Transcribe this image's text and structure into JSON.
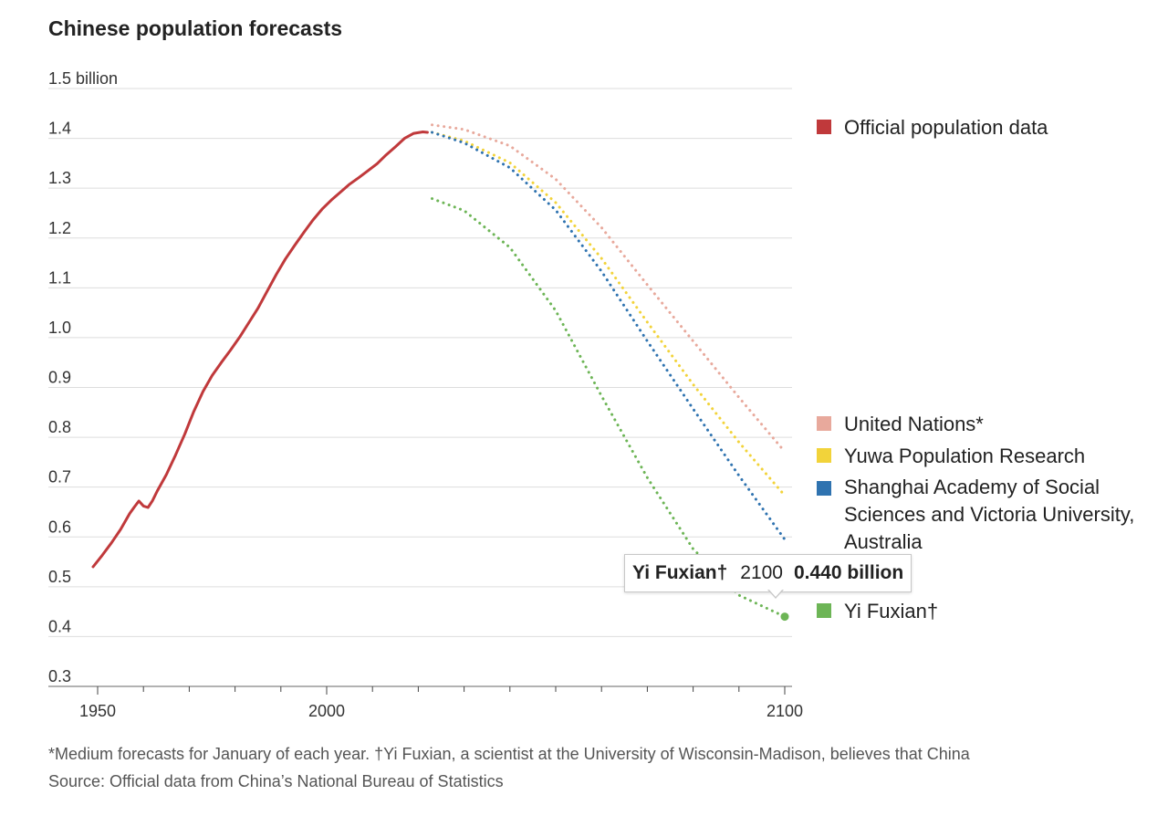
{
  "chart_data": {
    "type": "line",
    "title": "Chinese population forecasts",
    "y_unit_label": "1.5 billion",
    "ylim": [
      0.3,
      1.5
    ],
    "xlim": [
      1950,
      2100
    ],
    "y_ticks": [
      "0.3",
      "0.4",
      "0.5",
      "0.6",
      "0.7",
      "0.8",
      "0.9",
      "1.0",
      "1.1",
      "1.2",
      "1.3",
      "1.4"
    ],
    "x_ticks": [
      "1950",
      "2000",
      "2100"
    ],
    "grid": true,
    "legend_placement": "right",
    "series": [
      {
        "name": "Official population data",
        "color": "#c0393b",
        "style": "solid",
        "x": [
          1949,
          1951,
          1953,
          1955,
          1957,
          1958,
          1959,
          1960,
          1961,
          1962,
          1963,
          1965,
          1967,
          1969,
          1971,
          1973,
          1975,
          1977,
          1979,
          1981,
          1983,
          1985,
          1987,
          1989,
          1991,
          1993,
          1995,
          1997,
          1999,
          2001,
          2003,
          2005,
          2007,
          2009,
          2011,
          2013,
          2015,
          2017,
          2019,
          2021,
          2022
        ],
        "y": [
          0.54,
          0.563,
          0.588,
          0.615,
          0.647,
          0.66,
          0.672,
          0.662,
          0.659,
          0.673,
          0.692,
          0.725,
          0.764,
          0.806,
          0.852,
          0.892,
          0.924,
          0.95,
          0.975,
          1.001,
          1.03,
          1.059,
          1.093,
          1.127,
          1.158,
          1.185,
          1.211,
          1.236,
          1.258,
          1.276,
          1.292,
          1.308,
          1.321,
          1.335,
          1.349,
          1.367,
          1.383,
          1.4,
          1.41,
          1.413,
          1.412
        ]
      },
      {
        "name": "United Nations*",
        "color": "#e8a99c",
        "style": "dotted",
        "x": [
          2023,
          2030,
          2040,
          2050,
          2060,
          2070,
          2080,
          2090,
          2100
        ],
        "y": [
          1.427,
          1.418,
          1.385,
          1.318,
          1.221,
          1.106,
          0.993,
          0.88,
          0.771
        ]
      },
      {
        "name": "Yuwa Population Research",
        "color": "#f2d33a",
        "style": "dotted",
        "x": [
          2023,
          2030,
          2040,
          2050,
          2060,
          2070,
          2080,
          2090,
          2100
        ],
        "y": [
          1.412,
          1.395,
          1.351,
          1.271,
          1.159,
          1.031,
          0.906,
          0.79,
          0.683
        ]
      },
      {
        "name": "Shanghai Academy of Social Sciences and Victoria University, Australia",
        "color": "#2f73b0",
        "style": "dotted",
        "x": [
          2023,
          2030,
          2040,
          2050,
          2060,
          2070,
          2080,
          2090,
          2100
        ],
        "y": [
          1.412,
          1.391,
          1.341,
          1.256,
          1.133,
          0.993,
          0.857,
          0.723,
          0.595
        ]
      },
      {
        "name": "Yi Fuxian†",
        "color": "#6db556",
        "style": "dotted",
        "x": [
          2023,
          2030,
          2040,
          2050,
          2060,
          2070,
          2080,
          2090,
          2100
        ],
        "y": [
          1.279,
          1.255,
          1.181,
          1.054,
          0.883,
          0.719,
          0.576,
          0.483,
          0.44
        ]
      }
    ],
    "tooltip": {
      "series_name": "Yi Fuxian†",
      "year": "2100",
      "value_label": "0.440 billion",
      "x": 2100,
      "y": 0.44
    }
  },
  "footnotes": {
    "line1": "*Medium forecasts for January of each year. †Yi Fuxian, a scientist at the University of Wisconsin-Madison, believes that China",
    "line2": "Source: Official data from China’s National Bureau of Statistics"
  }
}
